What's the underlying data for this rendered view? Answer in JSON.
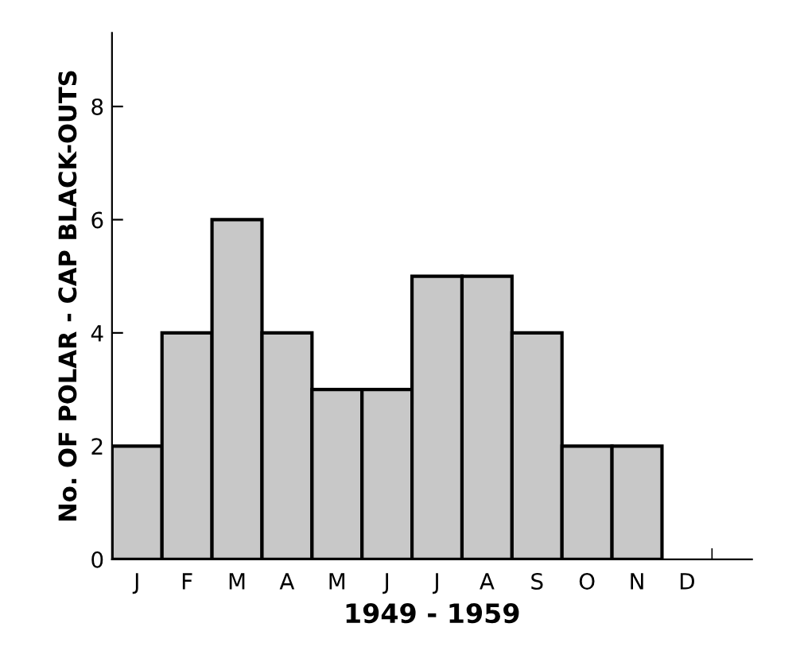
{
  "chart_data": {
    "type": "bar",
    "xlabel": "1949 - 1959",
    "ylabel": "No. OF POLAR - CAP BLACK-OUTS",
    "categories": [
      "J",
      "F",
      "M",
      "A",
      "M",
      "J",
      "J",
      "A",
      "S",
      "O",
      "N",
      "D"
    ],
    "values": [
      2,
      4,
      6,
      4,
      3,
      3,
      5,
      5,
      4,
      2,
      2,
      null
    ],
    "color": "#c8c8c8",
    "ylim": [
      0,
      9.3
    ],
    "yticks": [
      0,
      2,
      4,
      6,
      8
    ],
    "grid": false
  }
}
